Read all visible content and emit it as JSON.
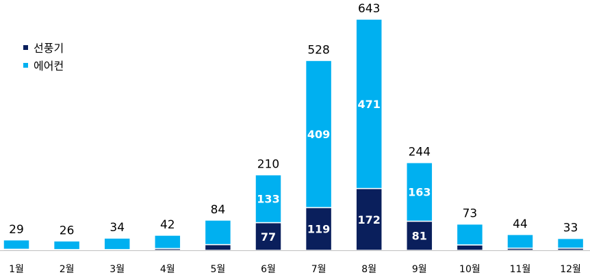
{
  "colors": {
    "fan": "#0a1f5c",
    "aircon": "#00b0f0",
    "axis": "#bfbfbf"
  },
  "chart_data": {
    "type": "bar",
    "stacked": true,
    "categories": [
      "1월",
      "2월",
      "3월",
      "4월",
      "5월",
      "6월",
      "7월",
      "8월",
      "9월",
      "10월",
      "11월",
      "12월"
    ],
    "series": [
      {
        "name": "선풍기",
        "values": [
          3,
          2,
          2,
          5,
          16,
          77,
          119,
          172,
          81,
          15,
          6,
          6
        ]
      },
      {
        "name": "에어컨",
        "values": [
          26,
          24,
          32,
          37,
          68,
          133,
          409,
          471,
          163,
          58,
          38,
          27
        ]
      }
    ],
    "totals": [
      29,
      26,
      34,
      42,
      84,
      210,
      528,
      643,
      244,
      73,
      44,
      33
    ],
    "segment_labels": {
      "선풍기": [
        null,
        null,
        null,
        null,
        null,
        "77",
        "119",
        "172",
        "81",
        null,
        null,
        null
      ],
      "에어컨": [
        null,
        null,
        null,
        null,
        null,
        "133",
        "409",
        "471",
        "163",
        null,
        null,
        null
      ]
    },
    "ylim": [
      0,
      650
    ],
    "grid": false,
    "legend_position": "top-left"
  }
}
